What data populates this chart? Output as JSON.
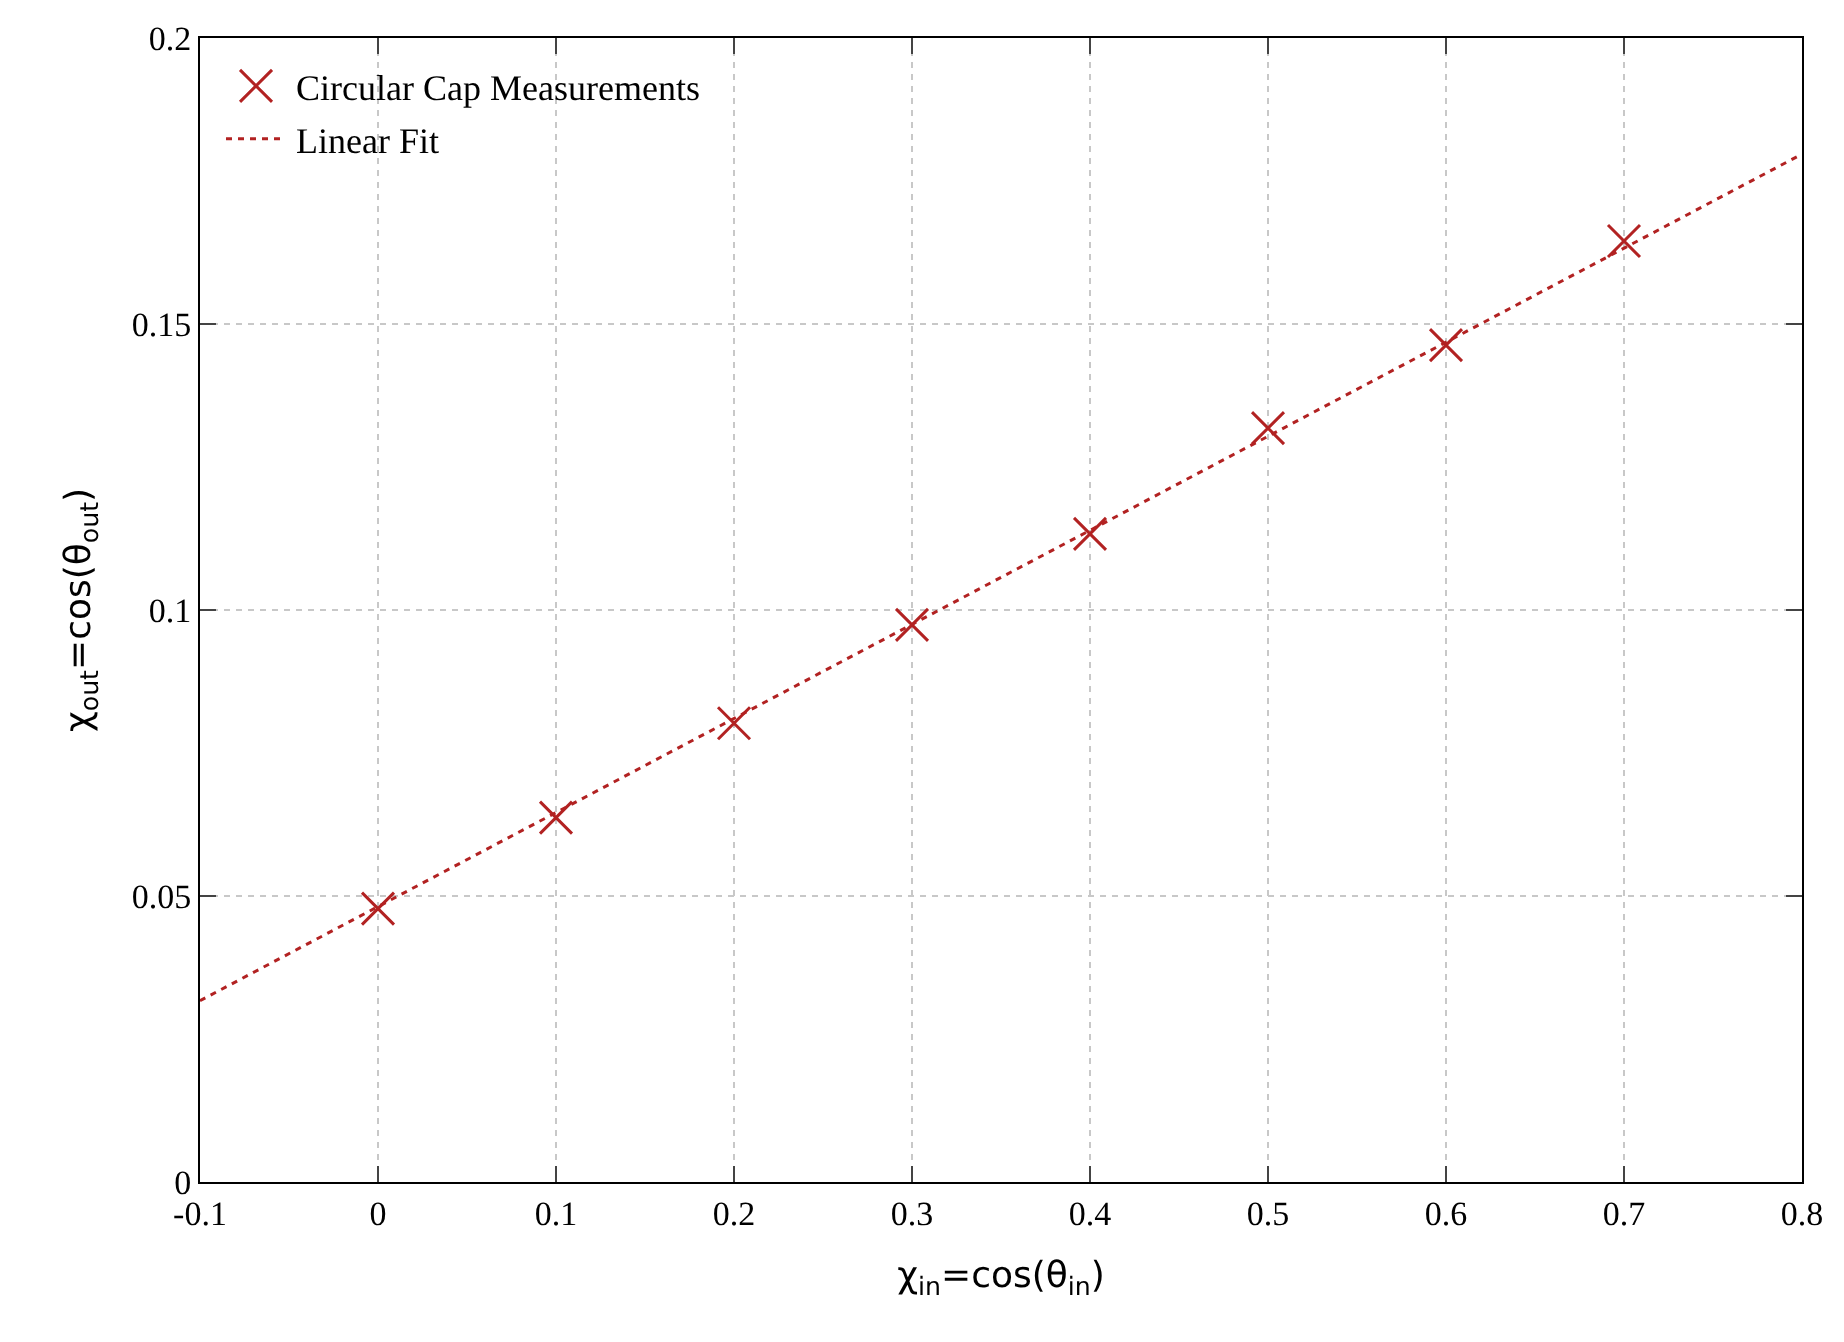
{
  "chart_data": {
    "type": "scatter",
    "xlabel": "χ$_{in}$=cos(θ$_{in}$)",
    "ylabel": "χ$_{out}$=cos(θ$_{out}$)",
    "xlim": [
      -0.1,
      0.8
    ],
    "xticks": [
      -0.1,
      0,
      0.1,
      0.2,
      0.3,
      0.4,
      0.5,
      0.6,
      0.7,
      0.8
    ],
    "ylim": [
      0,
      0.2
    ],
    "yticks": [
      0,
      0.05,
      0.1,
      0.15,
      0.2
    ],
    "grid": true,
    "legend": "top left",
    "series": [
      {
        "name": "Circular Cap Measurements",
        "marker": "cross",
        "color": "#b22222",
        "x": [
          0,
          0.1,
          0.2,
          0.3,
          0.4,
          0.5,
          0.6,
          0.7
        ],
        "values": [
          0.0478,
          0.0637,
          0.0802,
          0.0974,
          0.1133,
          0.1318,
          0.1463,
          0.1645
        ]
      },
      {
        "name": "Linear Fit",
        "type": "line",
        "line_style": "dotted",
        "color": "#b22222",
        "x": [
          -0.1,
          0.8
        ],
        "values": [
          0.0317,
          0.1797
        ]
      }
    ]
  }
}
